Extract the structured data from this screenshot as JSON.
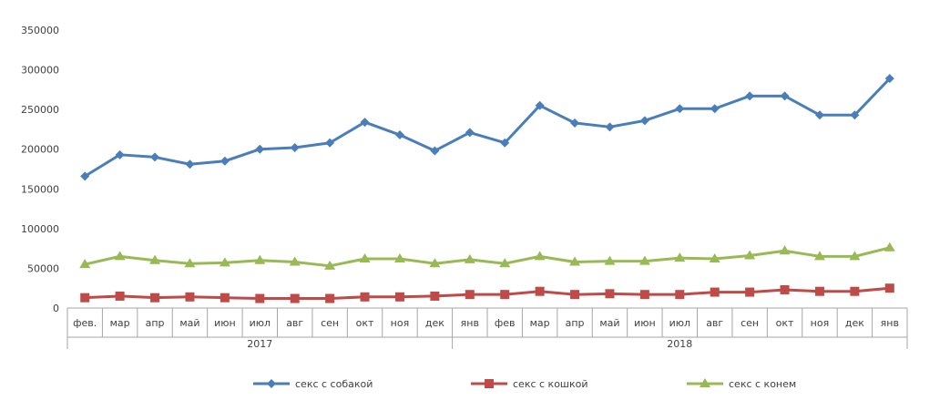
{
  "chart_data": {
    "type": "line",
    "title": "",
    "xlabel": "",
    "ylabel": "",
    "ylim": [
      0,
      350000
    ],
    "y_ticks": [
      0,
      50000,
      100000,
      150000,
      200000,
      250000,
      300000,
      350000
    ],
    "y_tick_labels": [
      "0",
      "50000",
      "100000",
      "150000",
      "200000",
      "250000",
      "300000",
      "350000"
    ],
    "grid": false,
    "legend_position": "bottom",
    "categories": [
      "фев.",
      "мар",
      "апр",
      "май",
      "июн",
      "июл",
      "авг",
      "сен",
      "окт",
      "ноя",
      "дек",
      "янв",
      "фев",
      "мар",
      "апр",
      "май",
      "июн",
      "июл",
      "авг",
      "сен",
      "окт",
      "ноя",
      "дек",
      "янв"
    ],
    "groups": [
      {
        "label": "2017",
        "start": 0,
        "end": 10
      },
      {
        "label": "2018",
        "start": 11,
        "end": 23
      }
    ],
    "series": [
      {
        "name": "секс с собакой",
        "color": "#4a7ebb",
        "marker": "diamond",
        "values": [
          166000,
          193000,
          190000,
          181000,
          185000,
          200000,
          202000,
          208000,
          234000,
          218000,
          198000,
          221000,
          208000,
          255000,
          233000,
          228000,
          236000,
          251000,
          251000,
          267000,
          267000,
          243000,
          243000,
          289000
        ]
      },
      {
        "name": "секс с кошкой",
        "color": "#be4b48",
        "marker": "square",
        "values": [
          13000,
          15000,
          13000,
          14000,
          13000,
          12000,
          12000,
          12000,
          14000,
          14000,
          15000,
          17000,
          17000,
          21000,
          17000,
          18000,
          17000,
          17000,
          20000,
          20000,
          23000,
          21000,
          21000,
          25000
        ]
      },
      {
        "name": "секс с конем",
        "color": "#98b954",
        "marker": "triangle",
        "values": [
          55000,
          65000,
          60000,
          56000,
          57000,
          60000,
          58000,
          53000,
          62000,
          62000,
          56000,
          61000,
          56000,
          65000,
          58000,
          59000,
          59000,
          63000,
          62000,
          66000,
          72000,
          65000,
          65000,
          76000
        ]
      }
    ]
  }
}
